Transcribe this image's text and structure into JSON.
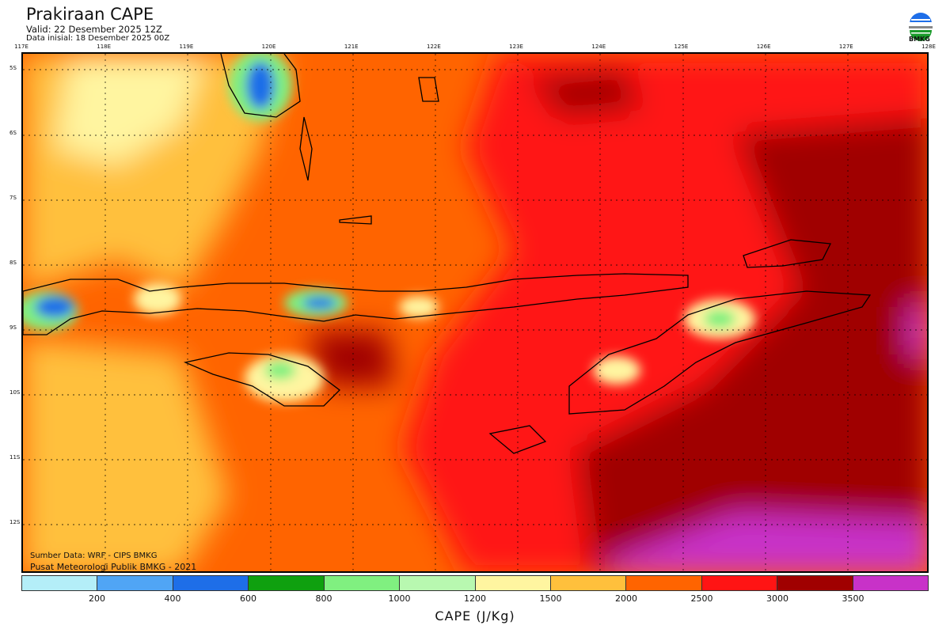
{
  "header": {
    "title": "Prakiraan CAPE",
    "valid": "Valid: 22 Desember 2025 12Z",
    "init": "Data inisial: 18 Desember 2025 00Z",
    "logo_text": "BMKG"
  },
  "axes": {
    "lon_labels": [
      "117E",
      "118E",
      "119E",
      "120E",
      "121E",
      "122E",
      "123E",
      "124E",
      "125E",
      "126E",
      "127E",
      "128E"
    ],
    "lat_labels": [
      "5S",
      "6S",
      "7S",
      "8S",
      "9S",
      "10S",
      "11S",
      "12S"
    ]
  },
  "credits": {
    "source": "Sumber Data: WRF - CIPS BMKG",
    "org": "Pusat Meteorologi Publik BMKG - 2021"
  },
  "colorbar": {
    "colors": [
      "#b4eef8",
      "#50a5f5",
      "#1e6ee8",
      "#0fa00f",
      "#80f080",
      "#b8f8b0",
      "#fff5a0",
      "#ffc03c",
      "#ff6400",
      "#ff1414",
      "#a00000",
      "#c832c8"
    ],
    "ticks": [
      "200",
      "400",
      "600",
      "800",
      "1000",
      "1200",
      "1500",
      "2000",
      "2500",
      "3000",
      "3500"
    ],
    "units": "CAPE (J/Kg)"
  }
}
